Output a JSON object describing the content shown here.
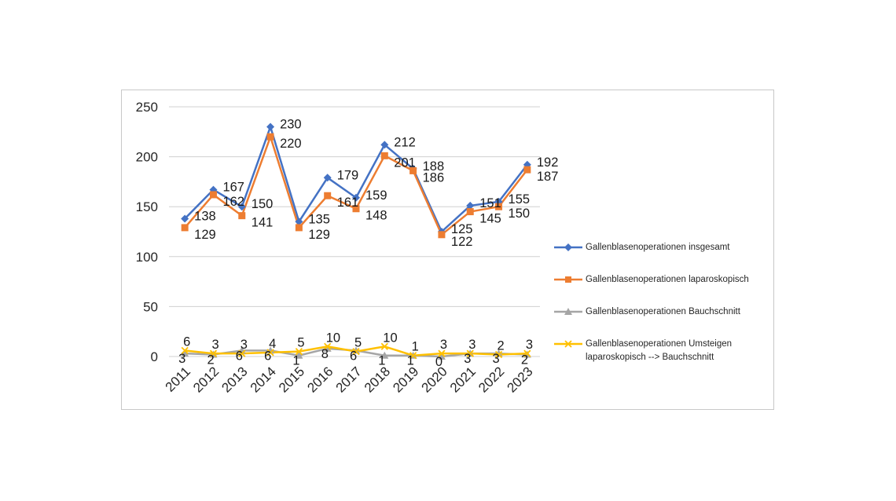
{
  "chart_data": {
    "type": "line",
    "title": "",
    "xlabel": "",
    "ylabel": "",
    "x": [
      "2011",
      "2012",
      "2013",
      "2014",
      "2015",
      "2016",
      "2017",
      "2018",
      "2019",
      "2020",
      "2021",
      "2022",
      "2023"
    ],
    "ylim": [
      0,
      250
    ],
    "yticks": [
      "0",
      "50",
      "100",
      "150",
      "200",
      "250"
    ],
    "grid": "horizontal",
    "legend_position": "right",
    "series": [
      {
        "name": "Gallenblasenoperationen insgesamt",
        "color": "#4472C4",
        "marker": "diamond",
        "values": [
          138,
          167,
          150,
          230,
          135,
          179,
          159,
          212,
          188,
          125,
          151,
          155,
          192
        ]
      },
      {
        "name": "Gallenblasenoperationen laparoskopisch",
        "color": "#ED7D31",
        "marker": "square",
        "values": [
          129,
          162,
          141,
          220,
          129,
          161,
          148,
          201,
          186,
          122,
          145,
          150,
          187
        ]
      },
      {
        "name": "Gallenblasenoperationen Bauchschnitt",
        "color": "#A5A5A5",
        "marker": "triangle",
        "values": [
          3,
          2,
          6,
          6,
          1,
          8,
          6,
          1,
          1,
          0,
          3,
          3,
          2
        ]
      },
      {
        "name": "Gallenblasenoperationen Umsteigen laparoskopisch --> Bauchschnitt",
        "color": "#FFC000",
        "marker": "x",
        "values": [
          6,
          3,
          3,
          4,
          5,
          10,
          5,
          10,
          1,
          3,
          3,
          2,
          3
        ]
      }
    ]
  }
}
